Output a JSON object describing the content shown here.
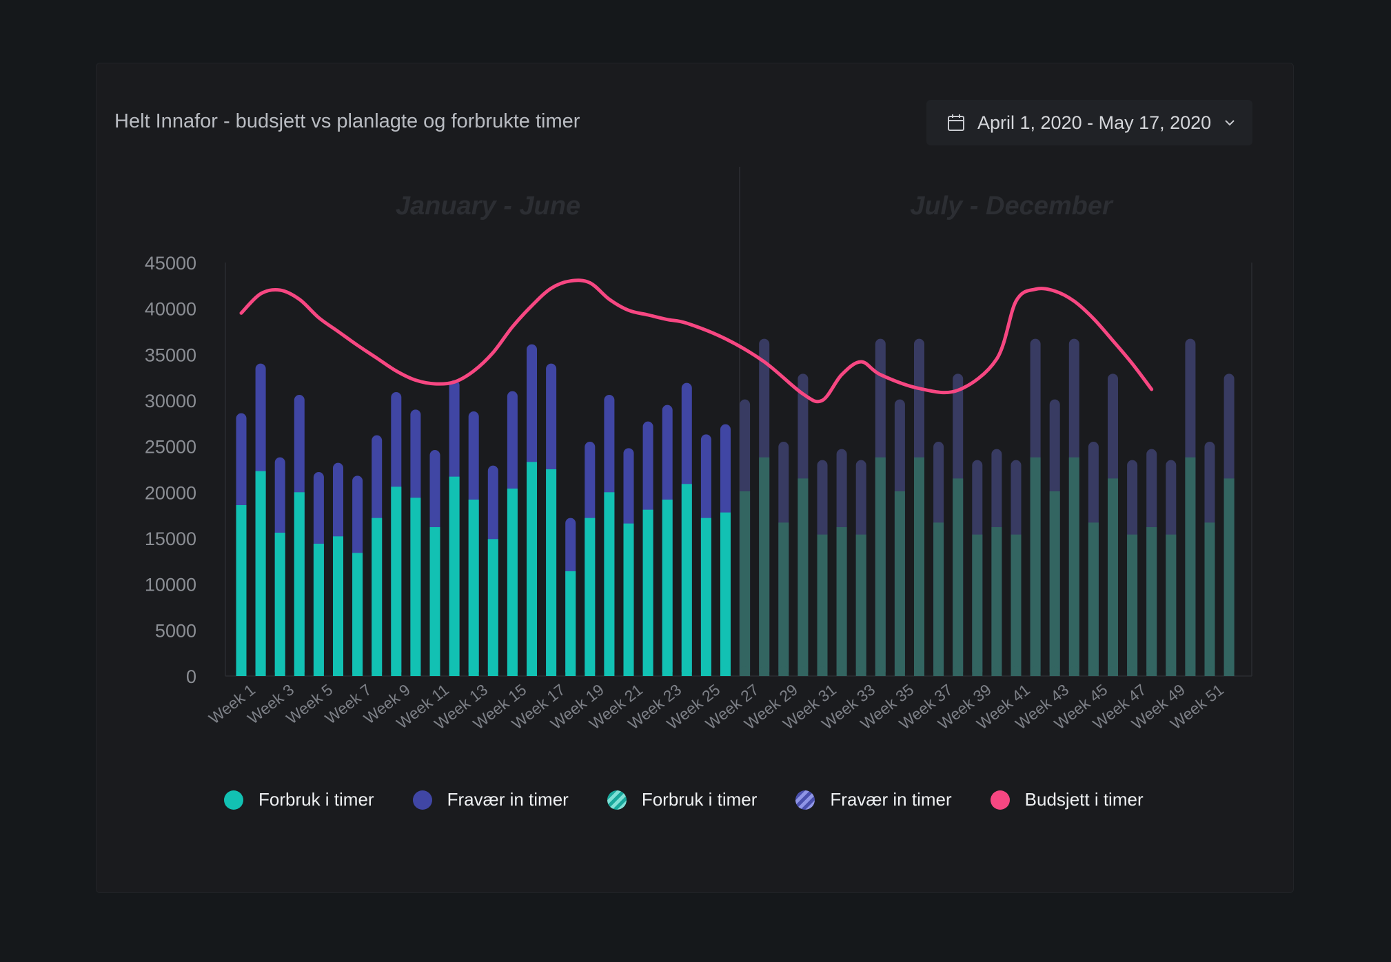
{
  "header": {
    "title": "Helt Innafor - budsjett vs planlagte og forbrukte timer",
    "date_range": "April 1, 2020 - May 17, 2020"
  },
  "periods": [
    "January -  June",
    "July - December"
  ],
  "colors": {
    "forbruk": "#12c1b3",
    "fravaer": "#4046a4",
    "forbruk_planned": "#336561",
    "fravaer_planned": "#383b62",
    "budsjett": "#f74782"
  },
  "legend": [
    {
      "label": "Forbruk i timer",
      "style": "solid-teal"
    },
    {
      "label": "Fravær in timer",
      "style": "solid-indigo"
    },
    {
      "label": "Forbruk i timer",
      "style": "striped-teal"
    },
    {
      "label": "Fravær in timer",
      "style": "striped-indigo"
    },
    {
      "label": "Budsjett i timer",
      "style": "solid-pink"
    }
  ],
  "chart_data": {
    "type": "bar",
    "stacked": true,
    "yticks": [
      0,
      5000,
      10000,
      15000,
      20000,
      25000,
      30000,
      35000,
      40000,
      45000
    ],
    "ylim": [
      0,
      45000
    ],
    "x_tick_labels": [
      "Week 1",
      "Week 3",
      "Week 5",
      "Week 7",
      "Week 9",
      "Week 11",
      "Week 13",
      "Week 15",
      "Week 17",
      "Week 19",
      "Week 21",
      "Week 23",
      "Week 25",
      "Week 27",
      "Week 29",
      "Week 31",
      "Week 33",
      "Week 35",
      "Week 37",
      "Week 39",
      "Week 41",
      "Week 43",
      "Week 45",
      "Week 47",
      "Week 49",
      "Week 51"
    ],
    "weeks": [
      1,
      2,
      3,
      4,
      5,
      6,
      7,
      8,
      9,
      10,
      11,
      12,
      13,
      14,
      15,
      16,
      17,
      18,
      19,
      20,
      21,
      22,
      23,
      24,
      25,
      26,
      27,
      28,
      29,
      30,
      31,
      32,
      33,
      34,
      35,
      36,
      37,
      38,
      39,
      40,
      41,
      42,
      43,
      44,
      45,
      46,
      47,
      48,
      49,
      50,
      51,
      52
    ],
    "series": [
      {
        "name": "Forbruk i timer",
        "stack": "a",
        "values": [
          18600,
          22300,
          15600,
          20000,
          14400,
          15200,
          13400,
          17200,
          20600,
          19400,
          16200,
          21700,
          19200,
          14900,
          20400,
          23300,
          22500,
          11400,
          17200,
          20000,
          16600,
          18100,
          19200,
          20900,
          17200,
          17800,
          20100,
          23800,
          16700,
          21500,
          15400,
          16200,
          15400,
          23800,
          20100,
          23800,
          16700,
          21500,
          15400,
          16200,
          15400,
          23800,
          20100,
          23800,
          16700,
          21500,
          15400,
          16200,
          15400,
          23800,
          16700,
          21500
        ]
      },
      {
        "name": "Fravær in timer",
        "stack": "a",
        "values": [
          10000,
          11700,
          8200,
          10600,
          7800,
          8000,
          8400,
          9000,
          10300,
          9600,
          8400,
          10500,
          9600,
          8000,
          10600,
          12800,
          11500,
          5800,
          8300,
          10600,
          8200,
          9600,
          10300,
          11000,
          9100,
          9600,
          10000,
          12900,
          8800,
          11400,
          8100,
          8500,
          8100,
          12900,
          10000,
          12900,
          8800,
          11400,
          8100,
          8500,
          8100,
          12900,
          10000,
          12900,
          8800,
          11400,
          8100,
          8500,
          8100,
          12900,
          8800,
          11400
        ]
      },
      {
        "name": "Budsjett i timer",
        "type": "line",
        "values": [
          39500,
          41600,
          42000,
          41000,
          39000,
          37500,
          36000,
          34600,
          33200,
          32200,
          31800,
          32000,
          33200,
          35200,
          38000,
          40300,
          42200,
          43000,
          42800,
          41000,
          39800,
          39300,
          38800,
          38400,
          36700,
          34200,
          30700,
          30000,
          32800,
          34200,
          32800,
          31300,
          31100,
          34500,
          40800,
          42100,
          41900,
          40800,
          38900,
          36500,
          34000,
          31200
        ]
      }
    ],
    "budget_line_points_weeks": [
      1,
      2,
      3,
      4,
      5,
      6,
      7,
      8,
      9,
      10,
      11,
      12,
      13,
      14,
      15,
      16,
      17,
      18,
      19,
      20,
      21,
      22,
      23,
      24,
      26,
      28,
      30,
      31,
      32,
      33,
      34,
      36,
      38,
      40,
      41,
      42,
      43,
      44,
      45,
      46,
      47,
      48
    ],
    "notes_period_split_after_week": 26
  }
}
